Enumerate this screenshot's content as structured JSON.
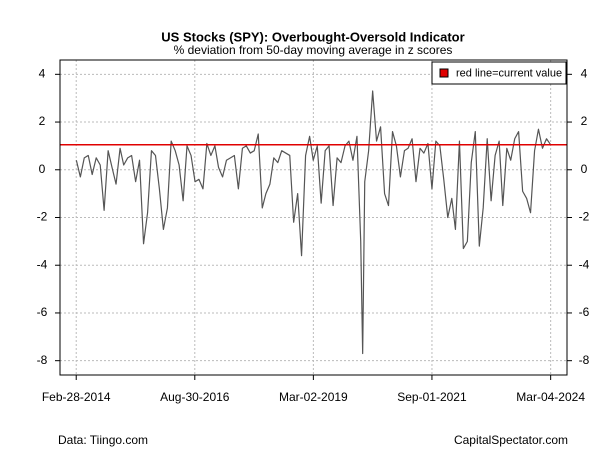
{
  "chart_data": {
    "type": "line",
    "title": "US Stocks (SPY): Overbought-Oversold Indicator",
    "subtitle": "% deviation from 50-day moving average in z scores",
    "source": "Data: Tiingo.com",
    "credit": "CapitalSpectator.com",
    "color": "#555555",
    "hline": {
      "value": 1.05,
      "label": "red line=current value",
      "color": "#e00000"
    },
    "legend": "top-right",
    "grid": true,
    "xlim": [
      "2013-10-26",
      "2024-07-08"
    ],
    "ylim": [
      -8.6,
      4.6
    ],
    "yticks": [
      -8,
      -6,
      -4,
      -2,
      0,
      2,
      4
    ],
    "xticks": [
      {
        "value": "2014-02-28",
        "label": "Feb-28-2014"
      },
      {
        "value": "2016-08-30",
        "label": "Aug-30-2016"
      },
      {
        "value": "2019-03-02",
        "label": "Mar-02-2019"
      },
      {
        "value": "2021-09-01",
        "label": "Sep-01-2021"
      },
      {
        "value": "2024-03-04",
        "label": "Mar-04-2024"
      }
    ],
    "x": [
      "2014-03-01",
      "2014-04-01",
      "2014-05-01",
      "2014-06-01",
      "2014-07-01",
      "2014-08-01",
      "2014-09-01",
      "2014-10-01",
      "2014-11-01",
      "2014-12-01",
      "2015-01-01",
      "2015-02-01",
      "2015-03-01",
      "2015-04-01",
      "2015-05-01",
      "2015-06-01",
      "2015-07-01",
      "2015-08-01",
      "2015-09-01",
      "2015-10-01",
      "2015-11-01",
      "2015-12-01",
      "2016-01-01",
      "2016-02-01",
      "2016-03-01",
      "2016-04-01",
      "2016-05-01",
      "2016-06-01",
      "2016-07-01",
      "2016-08-01",
      "2016-09-01",
      "2016-10-01",
      "2016-11-01",
      "2016-12-01",
      "2017-01-01",
      "2017-02-01",
      "2017-03-01",
      "2017-04-01",
      "2017-05-01",
      "2017-06-01",
      "2017-07-01",
      "2017-08-01",
      "2017-09-01",
      "2017-10-01",
      "2017-11-01",
      "2017-12-01",
      "2018-01-01",
      "2018-02-01",
      "2018-03-01",
      "2018-04-01",
      "2018-05-01",
      "2018-06-01",
      "2018-07-01",
      "2018-08-01",
      "2018-09-01",
      "2018-10-01",
      "2018-11-01",
      "2018-12-01",
      "2019-01-01",
      "2019-02-01",
      "2019-03-01",
      "2019-04-01",
      "2019-05-01",
      "2019-06-01",
      "2019-07-01",
      "2019-08-01",
      "2019-09-01",
      "2019-10-01",
      "2019-11-01",
      "2019-12-01",
      "2020-01-01",
      "2020-02-01",
      "2020-03-01",
      "2020-03-16",
      "2020-04-01",
      "2020-05-01",
      "2020-06-01",
      "2020-07-01",
      "2020-08-01",
      "2020-09-01",
      "2020-10-01",
      "2020-11-01",
      "2020-12-01",
      "2021-01-01",
      "2021-02-01",
      "2021-03-01",
      "2021-04-01",
      "2021-05-01",
      "2021-06-01",
      "2021-07-01",
      "2021-08-01",
      "2021-09-01",
      "2021-10-01",
      "2021-11-01",
      "2021-12-01",
      "2022-01-01",
      "2022-02-01",
      "2022-03-01",
      "2022-04-01",
      "2022-05-01",
      "2022-06-01",
      "2022-07-01",
      "2022-08-01",
      "2022-09-01",
      "2022-10-01",
      "2022-11-01",
      "2022-12-01",
      "2023-01-01",
      "2023-02-01",
      "2023-03-01",
      "2023-04-01",
      "2023-05-01",
      "2023-06-01",
      "2023-07-01",
      "2023-08-01",
      "2023-09-01",
      "2023-10-01",
      "2023-11-01",
      "2023-12-01",
      "2024-01-01",
      "2024-02-01",
      "2024-03-04"
    ],
    "values": [
      0.4,
      -0.3,
      0.5,
      0.6,
      -0.2,
      0.5,
      0.2,
      -1.7,
      0.8,
      0.1,
      -0.6,
      0.9,
      0.2,
      0.5,
      0.6,
      -0.5,
      0.4,
      -3.1,
      -1.8,
      0.8,
      0.6,
      -0.8,
      -2.5,
      -1.6,
      1.2,
      0.8,
      0.2,
      -1.3,
      1.0,
      0.6,
      -0.5,
      -0.4,
      -0.8,
      1.1,
      0.6,
      1.0,
      0.1,
      -0.3,
      0.4,
      0.5,
      0.6,
      -0.8,
      0.9,
      1.0,
      0.7,
      0.8,
      1.5,
      -1.6,
      -1.0,
      -0.6,
      0.5,
      0.3,
      0.8,
      0.7,
      0.6,
      -2.2,
      -1.0,
      -3.6,
      0.6,
      1.4,
      0.4,
      1.0,
      -1.4,
      0.8,
      1.0,
      -1.5,
      0.5,
      0.3,
      1.0,
      1.2,
      0.4,
      1.4,
      -3.0,
      -7.7,
      -0.5,
      0.8,
      3.3,
      1.2,
      1.8,
      -1.0,
      -1.5,
      1.6,
      1.0,
      -0.3,
      0.8,
      0.9,
      1.3,
      -0.5,
      0.9,
      0.7,
      1.1,
      -0.8,
      1.2,
      1.0,
      -0.4,
      -2.0,
      -1.2,
      -2.5,
      1.2,
      -3.3,
      -3.0,
      0.3,
      1.6,
      -3.2,
      -1.6,
      1.3,
      -1.3,
      0.6,
      1.2,
      -1.5,
      0.9,
      0.4,
      1.3,
      1.6,
      -0.9,
      -1.2,
      -1.8,
      0.8,
      1.7,
      0.9,
      1.3,
      1.05
    ]
  }
}
